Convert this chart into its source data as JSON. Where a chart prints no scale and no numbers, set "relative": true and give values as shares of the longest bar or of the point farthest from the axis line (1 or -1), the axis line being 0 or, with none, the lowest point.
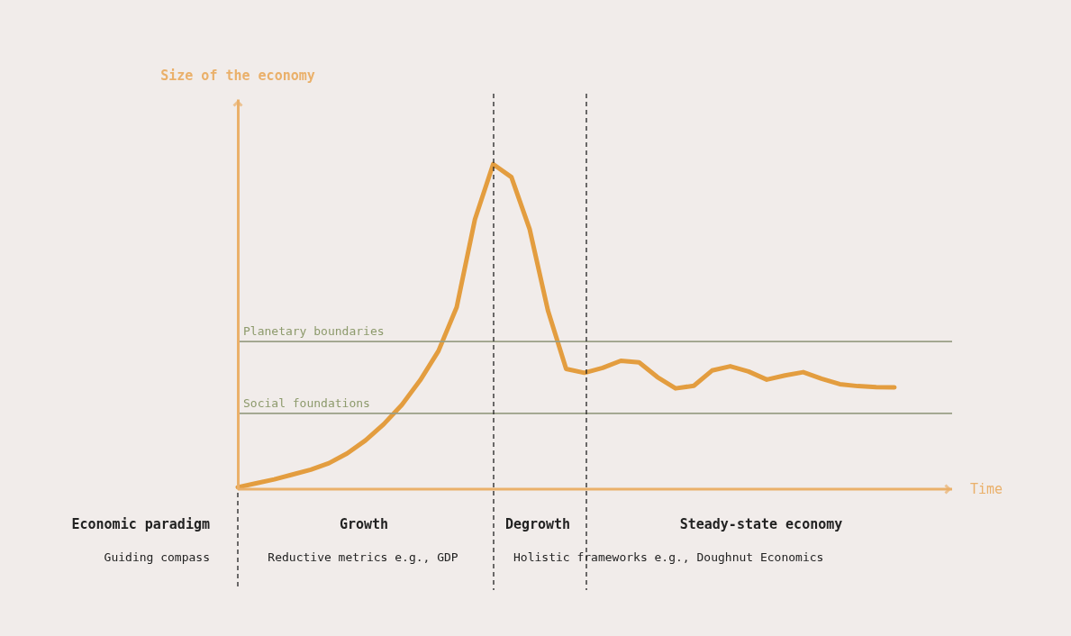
{
  "chart_data": {
    "type": "line",
    "relative": true,
    "xlabel": "Time",
    "categories": [
      null,
      null,
      null,
      null,
      null,
      null,
      null,
      null,
      null,
      null,
      null,
      null,
      null,
      null,
      null,
      null,
      null,
      null,
      null,
      null,
      null,
      null,
      null,
      null,
      null,
      null,
      null,
      null,
      null,
      null,
      null,
      null,
      null,
      null,
      null,
      null,
      null
    ],
    "series": [
      {
        "color": "#e39d3f",
        "values": [
          0.006,
          0.018,
          0.03,
          0.045,
          0.06,
          0.08,
          0.11,
          0.15,
          0.2,
          0.26,
          0.335,
          0.425,
          0.56,
          0.83,
          1,
          0.96,
          0.8,
          0.55,
          0.37,
          0.358,
          0.373,
          0.395,
          0.39,
          0.345,
          0.31,
          0.318,
          0.365,
          0.378,
          0.362,
          0.337,
          0.35,
          0.36,
          0.34,
          0.323,
          0.317,
          0.314,
          0.313
        ]
      }
    ],
    "ref_lines": [
      {
        "axis": "y",
        "value": 0.454,
        "label": "Planetary boundaries",
        "color": "#9a9f86"
      },
      {
        "axis": "y",
        "value": 0.233,
        "label": "Social foundations",
        "color": "#9a9f86"
      }
    ],
    "annotations": [
      "Size of the economy",
      "Economic paradigm",
      "Growth",
      "Degrowth",
      "Steady-state economy",
      "Guiding compass",
      "Reductive metrics e.g., GDP",
      "Holistic frameworks e.g., Doughnut Economics"
    ]
  }
}
